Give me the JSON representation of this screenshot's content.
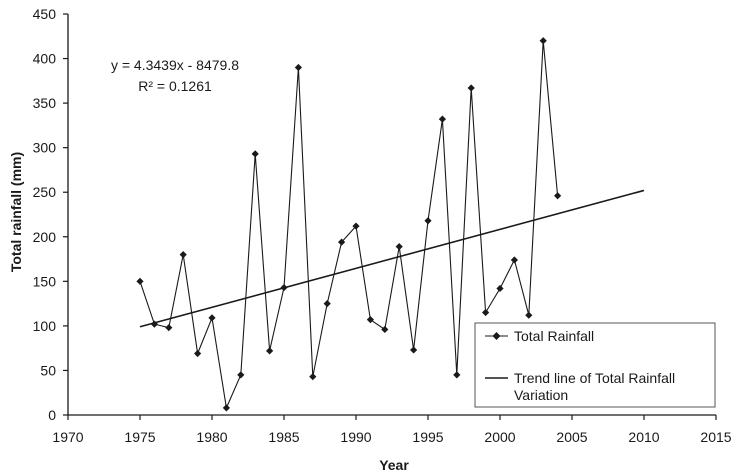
{
  "chart_data": {
    "type": "line",
    "title": "",
    "xlabel": "Year",
    "ylabel": "Total rainfall (mm)",
    "xlim": [
      1970,
      2015
    ],
    "ylim": [
      0,
      450
    ],
    "x_ticks": [
      1970,
      1975,
      1980,
      1985,
      1990,
      1995,
      2000,
      2005,
      2010,
      2015
    ],
    "y_ticks": [
      0,
      50,
      100,
      150,
      200,
      250,
      300,
      350,
      400,
      450
    ],
    "grid": false,
    "legend_position": "bottom-right",
    "series": [
      {
        "name": "Total Rainfall",
        "marker": "diamond",
        "color": "#1a1a1a",
        "x": [
          1975,
          1976,
          1977,
          1978,
          1979,
          1980,
          1981,
          1982,
          1983,
          1984,
          1985,
          1986,
          1987,
          1988,
          1989,
          1990,
          1991,
          1992,
          1993,
          1994,
          1995,
          1996,
          1997,
          1998,
          1999,
          2000,
          2001,
          2002,
          2003,
          2004
        ],
        "y": [
          150,
          102,
          98,
          180,
          69,
          109,
          8,
          45,
          293,
          72,
          143,
          390,
          43,
          125,
          194,
          212,
          107,
          96,
          189,
          73,
          218,
          332,
          45,
          367,
          115,
          142,
          174,
          112,
          420,
          246
        ]
      },
      {
        "name": "Trend line of Total Rainfall Variation",
        "color": "#1a1a1a",
        "x": [
          1975,
          2010
        ],
        "y": [
          99,
          252
        ]
      }
    ],
    "annotations": {
      "equation": "y = 4.3439x - 8479.8",
      "r_squared": "R² = 0.1261"
    }
  }
}
